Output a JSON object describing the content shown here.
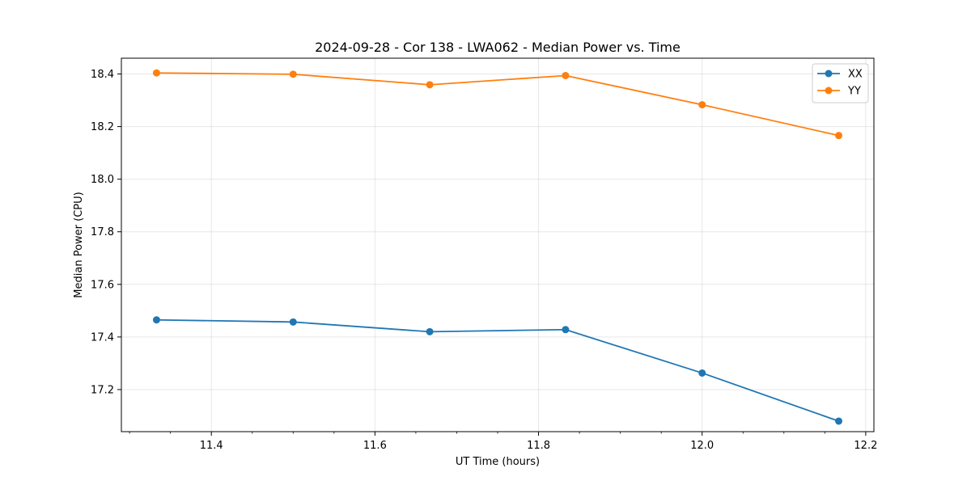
{
  "chart_data": {
    "type": "line",
    "title": "2024-09-28 - Cor 138 - LWA062 - Median Power vs. Time",
    "xlabel": "UT Time (hours)",
    "ylabel": "Median Power (CPU)",
    "xlim": [
      11.29,
      12.21
    ],
    "ylim": [
      17.04,
      18.46
    ],
    "xticks": [
      11.4,
      11.6,
      11.8,
      12.0,
      12.2
    ],
    "xtick_labels": [
      "11.4",
      "11.6",
      "11.8",
      "12.0",
      "12.2"
    ],
    "yticks": [
      17.2,
      17.4,
      17.6,
      17.8,
      18.0,
      18.2,
      18.4
    ],
    "ytick_labels": [
      "17.2",
      "17.4",
      "17.6",
      "17.8",
      "18.0",
      "18.2",
      "18.4"
    ],
    "grid": true,
    "legend_position": "top-right",
    "x": [
      11.333,
      11.5,
      11.667,
      11.833,
      12.0,
      12.167
    ],
    "series": [
      {
        "name": "XX",
        "color": "#1f77b4",
        "values": [
          17.465,
          17.457,
          17.42,
          17.428,
          17.263,
          17.08
        ]
      },
      {
        "name": "YY",
        "color": "#ff7f0e",
        "values": [
          18.404,
          18.399,
          18.359,
          18.394,
          18.283,
          18.166
        ]
      }
    ]
  }
}
